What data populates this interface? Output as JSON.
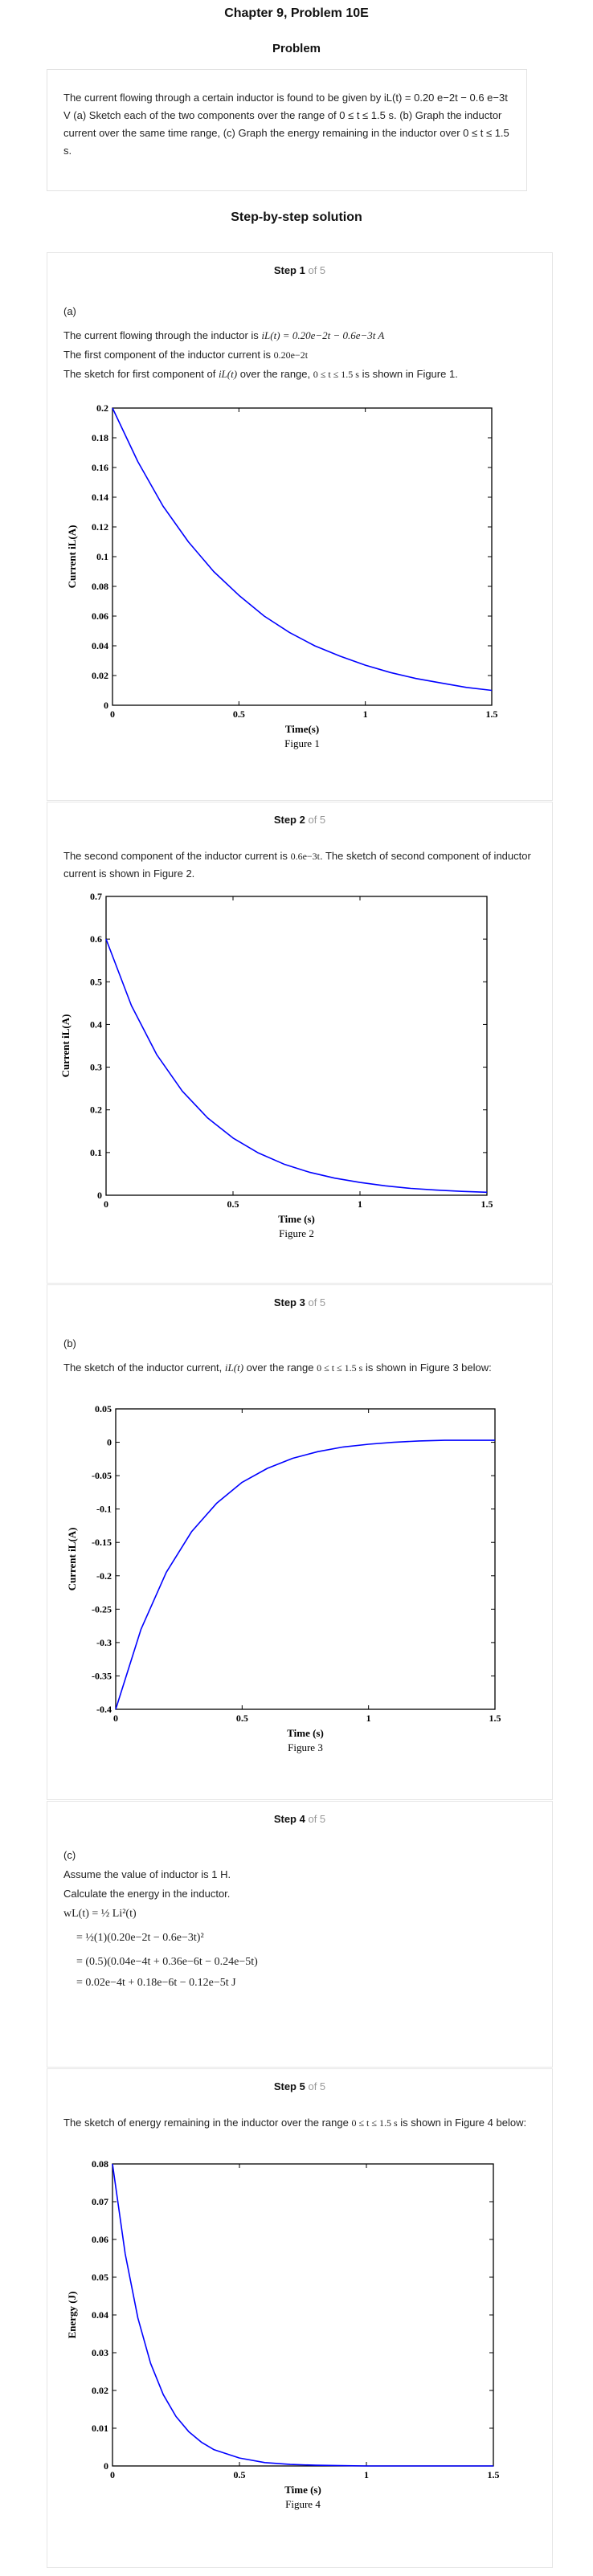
{
  "header": {
    "chapter_title": "Chapter 9, Problem 10E",
    "problem_label": "Problem",
    "problem_text": "The current flowing through a certain inductor is found to be given by iL(t) = 0.20 e−2t − 0.6 e−3t V (a) Sketch each of the two components over the range of 0 ≤ t ≤ 1.5 s. (b) Graph the inductor current over the same time range, (c) Graph the energy remaining in the inductor over 0 ≤ t ≤ 1.5 s.",
    "solution_label": "Step-by-step solution"
  },
  "steps": [
    {
      "num": "Step 1",
      "of": "of 5",
      "part": "(a)",
      "line1_pre": "The current flowing through the inductor is",
      "line1_math": "iL(t) = 0.20e−2t − 0.6e−3t A",
      "line2_pre": "The first component of the inductor current is",
      "line2_math": "0.20e−2t",
      "line3_pre": "The sketch for first component of",
      "line3_math1": "iL(t)",
      "line3_mid": "over the range,",
      "line3_math2": "0 ≤ t ≤ 1.5 s",
      "line3_post": "is shown in Figure 1."
    },
    {
      "num": "Step 2",
      "of": "of 5",
      "line1_pre": "The second component of the inductor current is",
      "line1_math": "0.6e−3t",
      "line1_post": ". The sketch of second component of inductor current is shown in Figure 2."
    },
    {
      "num": "Step 3",
      "of": "of 5",
      "part": "(b)",
      "line1_pre": "The sketch of the inductor current,",
      "line1_math1": "iL(t)",
      "line1_mid": "over the range",
      "line1_math2": "0 ≤ t ≤ 1.5 s",
      "line1_post": "is shown in Figure 3 below:"
    },
    {
      "num": "Step 4",
      "of": "of 5",
      "part": "(c)",
      "line1": "Assume the value of inductor is 1 H.",
      "line2": "Calculate the energy in the inductor.",
      "eq1": "wL(t) = ½ Li²(t)",
      "eq2": "= ½(1)(0.20e−2t − 0.6e−3t)²",
      "eq3": "= (0.5)(0.04e−4t + 0.36e−6t − 0.24e−5t)",
      "eq4": "= 0.02e−4t + 0.18e−6t − 0.12e−5t J"
    },
    {
      "num": "Step 5",
      "of": "of 5",
      "line1_pre": "The sketch of energy remaining in the inductor over the range",
      "line1_math": "0 ≤ t ≤ 1.5 s",
      "line1_post": "is shown in Figure 4 below:"
    }
  ],
  "chart_data": [
    {
      "type": "line",
      "caption": "Figure 1",
      "xlabel": "Time(s)",
      "ylabel": "Current iL(A)",
      "xlim": [
        0,
        1.5
      ],
      "ylim": [
        0,
        0.2
      ],
      "xticks": [
        "0",
        "0.5",
        "1",
        "1.5"
      ],
      "yticks": [
        "0",
        "0.02",
        "0.04",
        "0.06",
        "0.08",
        "0.1",
        "0.12",
        "0.14",
        "0.16",
        "0.18",
        "0.2"
      ],
      "color": "#0000ff",
      "x": [
        0,
        0.1,
        0.2,
        0.3,
        0.4,
        0.5,
        0.6,
        0.7,
        0.8,
        0.9,
        1.0,
        1.1,
        1.2,
        1.3,
        1.4,
        1.5
      ],
      "y": [
        0.2,
        0.164,
        0.134,
        0.11,
        0.09,
        0.074,
        0.06,
        0.049,
        0.04,
        0.033,
        0.027,
        0.022,
        0.018,
        0.015,
        0.012,
        0.01
      ]
    },
    {
      "type": "line",
      "caption": "Figure 2",
      "xlabel": "Time (s)",
      "ylabel": "Current iL(A)",
      "xlim": [
        0,
        1.5
      ],
      "ylim": [
        0,
        0.7
      ],
      "xticks": [
        "0",
        "0.5",
        "1",
        "1.5"
      ],
      "yticks": [
        "0",
        "0.1",
        "0.2",
        "0.3",
        "0.4",
        "0.5",
        "0.6",
        "0.7"
      ],
      "color": "#0000ff",
      "x": [
        0,
        0.1,
        0.2,
        0.3,
        0.4,
        0.5,
        0.6,
        0.7,
        0.8,
        0.9,
        1.0,
        1.1,
        1.2,
        1.3,
        1.4,
        1.5
      ],
      "y": [
        0.6,
        0.444,
        0.329,
        0.244,
        0.181,
        0.134,
        0.099,
        0.073,
        0.054,
        0.04,
        0.03,
        0.022,
        0.016,
        0.012,
        0.009,
        0.007
      ]
    },
    {
      "type": "line",
      "caption": "Figure 3",
      "xlabel": "Time (s)",
      "ylabel": "Current iL(A)",
      "xlim": [
        0,
        1.5
      ],
      "ylim": [
        -0.4,
        0.05
      ],
      "xticks": [
        "0",
        "0.5",
        "1",
        "1.5"
      ],
      "yticks": [
        "-0.4",
        "-0.35",
        "-0.3",
        "-0.25",
        "-0.2",
        "-0.15",
        "-0.1",
        "-0.05",
        "0",
        "0.05"
      ],
      "color": "#0000ff",
      "x": [
        0,
        0.1,
        0.2,
        0.3,
        0.4,
        0.5,
        0.6,
        0.7,
        0.8,
        0.9,
        1.0,
        1.1,
        1.2,
        1.3,
        1.4,
        1.5
      ],
      "y": [
        -0.4,
        -0.28,
        -0.195,
        -0.134,
        -0.091,
        -0.06,
        -0.039,
        -0.024,
        -0.014,
        -0.007,
        -0.003,
        0.0,
        0.002,
        0.003,
        0.003,
        0.003
      ]
    },
    {
      "type": "line",
      "caption": "Figure 4",
      "xlabel": "Time (s)",
      "ylabel": "Energy (J)",
      "xlim": [
        0,
        1.5
      ],
      "ylim": [
        0,
        0.08
      ],
      "xticks": [
        "0",
        "0.5",
        "1",
        "1.5"
      ],
      "yticks": [
        "0",
        "0.01",
        "0.02",
        "0.03",
        "0.04",
        "0.05",
        "0.06",
        "0.07",
        "0.08"
      ],
      "color": "#0000ff",
      "x": [
        0,
        0.05,
        0.1,
        0.15,
        0.2,
        0.25,
        0.3,
        0.35,
        0.4,
        0.5,
        0.6,
        0.7,
        0.8,
        1.0,
        1.2,
        1.5
      ],
      "y": [
        0.08,
        0.0562,
        0.0392,
        0.0272,
        0.0189,
        0.0131,
        0.0091,
        0.0063,
        0.0043,
        0.0021,
        0.0009,
        0.0004,
        0.0002,
        0.0,
        0.0,
        0.0
      ]
    }
  ]
}
